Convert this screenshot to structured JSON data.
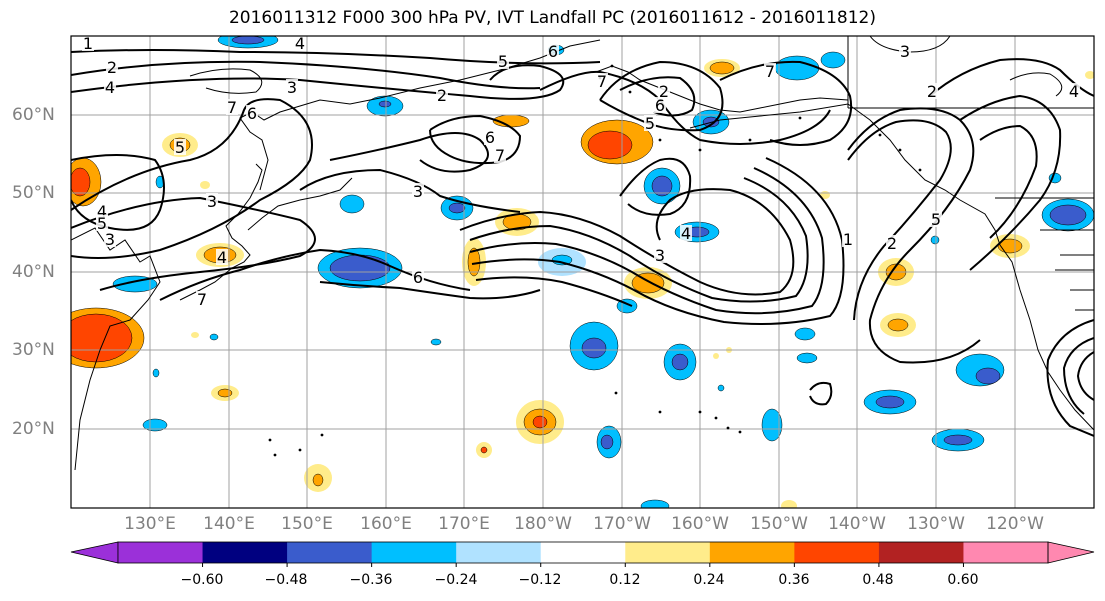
{
  "title": "2016011312 F000 300 hPa PV, IVT Landfall PC (2016011612 - 2016011812)",
  "longitude_labels": [
    "130°E",
    "140°E",
    "150°E",
    "160°E",
    "170°E",
    "180°W",
    "170°W",
    "160°W",
    "150°W",
    "140°W",
    "130°W",
    "120°W"
  ],
  "latitude_labels": [
    "60°N",
    "50°N",
    "40°N",
    "30°N",
    "20°N"
  ],
  "colorbar": {
    "tick_labels": [
      "−0.60",
      "−0.48",
      "−0.36",
      "−0.24",
      "−0.12",
      "0.12",
      "0.24",
      "0.36",
      "0.48",
      "0.60"
    ],
    "colors": [
      "#9b30d9",
      "#000080",
      "#3a5ccc",
      "#00bfff",
      "#b0e2ff",
      "#ffffff",
      "#ffec8b",
      "#ffa500",
      "#ff4500",
      "#b22222",
      "#ff88b0"
    ]
  },
  "contour_labels": [
    "1",
    "2",
    "3",
    "4",
    "5",
    "6",
    "7",
    "4",
    "2",
    "3",
    "5",
    "6",
    "7",
    "3",
    "4",
    "5",
    "6",
    "7",
    "4",
    "3",
    "6",
    "7",
    "2",
    "3",
    "4",
    "5",
    "6",
    "7",
    "2",
    "3",
    "5",
    "1",
    "2",
    "4"
  ],
  "colors": {
    "grid": "#a0a0a0",
    "coast": "#000000",
    "contour": "#000000",
    "axis_label": "#808080"
  }
}
